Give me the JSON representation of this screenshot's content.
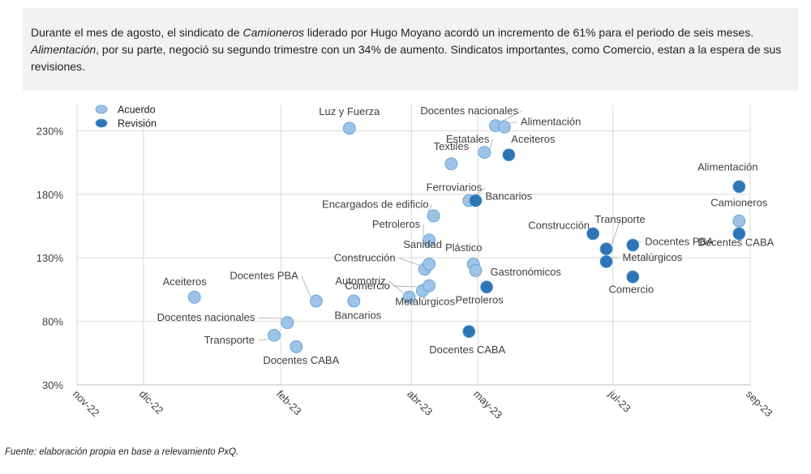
{
  "description": {
    "p1": "Durante el mes de agosto, el sindicato de ",
    "p2": "Camioneros",
    "p3": " liderado por Hugo Moyano acordó un incremento de 61% para el periodo de seis meses. ",
    "p4": "Alimentación",
    "p5": ", por su parte, negoció su segundo trimestre con un 34% de aumento. Sindicatos importantes, como Comercio, estan a la espera de sus revisiones."
  },
  "source": "Fuente: elaboración propia en base a relevamiento PxQ.",
  "colors": {
    "acuerdo": "#9dc3e6",
    "revision": "#2e75b6",
    "grid": "#d9d9d9",
    "text": "#404040"
  },
  "chart_data": {
    "type": "scatter",
    "x_ticks": [
      "nov-22",
      "dic-22",
      "feb-23",
      "abr-23",
      "may-23",
      "jul-23",
      "sep-23"
    ],
    "x_tick_dates": [
      "2022-11-01",
      "2022-12-01",
      "2023-02-01",
      "2023-04-01",
      "2023-05-01",
      "2023-07-01",
      "2023-09-01"
    ],
    "y_ticks": [
      "30%",
      "80%",
      "130%",
      "180%",
      "230%"
    ],
    "y_tick_values": [
      30,
      80,
      130,
      180,
      230
    ],
    "ylim": [
      30,
      250
    ],
    "grid": true,
    "legend_position": "top-left",
    "series": [
      {
        "name": "Acuerdo",
        "points": [
          {
            "label": "Aceiteros",
            "date": "2022-12-24",
            "y": 99
          },
          {
            "label": "Docentes nacionales",
            "date": "2023-02-04",
            "y": 79
          },
          {
            "label": "Transporte",
            "date": "2023-01-29",
            "y": 69
          },
          {
            "label": "Docentes CABA",
            "date": "2023-02-08",
            "y": 60
          },
          {
            "label": "Docentes PBA",
            "date": "2023-02-17",
            "y": 96
          },
          {
            "label": "Luz y Fuerza",
            "date": "2023-03-04",
            "y": 232
          },
          {
            "label": "Bancarios",
            "date": "2023-03-06",
            "y": 96
          },
          {
            "label": "Automotriz",
            "date": "2023-03-31",
            "y": 99
          },
          {
            "label": "Comercio",
            "date": "2023-04-06",
            "y": 104
          },
          {
            "label": "Metalúrgicos",
            "date": "2023-04-09",
            "y": 108
          },
          {
            "label": "Construcción",
            "date": "2023-04-07",
            "y": 121
          },
          {
            "label": "Sanidad",
            "date": "2023-04-09",
            "y": 125
          },
          {
            "label": "Petroleros",
            "date": "2023-04-09",
            "y": 144
          },
          {
            "label": "Encargados de edificio",
            "date": "2023-04-11",
            "y": 163
          },
          {
            "label": "Textiles",
            "date": "2023-04-19",
            "y": 204
          },
          {
            "label": "Ferroviarios",
            "date": "2023-04-27",
            "y": 175
          },
          {
            "label": "Plástico",
            "date": "2023-04-29",
            "y": 125
          },
          {
            "label": "Gastronómicos",
            "date": "2023-04-30",
            "y": 120
          },
          {
            "label": "Estatales",
            "date": "2023-05-04",
            "y": 213
          },
          {
            "label": "Docentes nacionales",
            "date": "2023-05-09",
            "y": 234
          },
          {
            "label": "Alimentación",
            "date": "2023-05-13",
            "y": 233
          },
          {
            "label": "Camioneros",
            "date": "2023-08-27",
            "y": 159
          }
        ]
      },
      {
        "name": "Revisión",
        "points": [
          {
            "label": "Docentes CABA",
            "date": "2023-04-27",
            "y": 72
          },
          {
            "label": "Bancarios",
            "date": "2023-04-30",
            "y": 175
          },
          {
            "label": "Petroleros",
            "date": "2023-05-05",
            "y": 107
          },
          {
            "label": "Aceiteros",
            "date": "2023-05-15",
            "y": 211
          },
          {
            "label": "Construcción",
            "date": "2023-06-22",
            "y": 149
          },
          {
            "label": "Transporte",
            "date": "2023-06-28",
            "y": 137
          },
          {
            "label": "Metalúrgicos",
            "date": "2023-06-28",
            "y": 127
          },
          {
            "label": "Docentes PBA",
            "date": "2023-07-10",
            "y": 140
          },
          {
            "label": "Comercio",
            "date": "2023-07-10",
            "y": 115
          },
          {
            "label": "Alimentación",
            "date": "2023-08-27",
            "y": 186
          },
          {
            "label": "Docentes CABA",
            "date": "2023-08-27",
            "y": 149
          }
        ]
      }
    ]
  }
}
